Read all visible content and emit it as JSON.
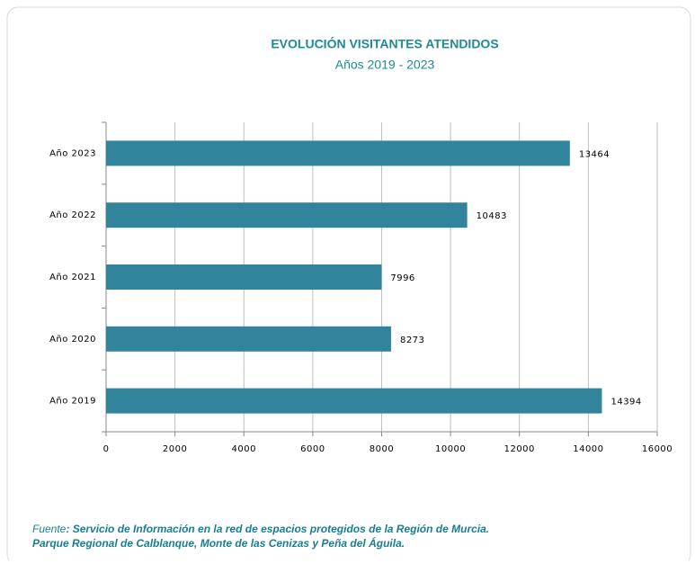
{
  "chart_data": {
    "type": "hbar",
    "title": "EVOLUCIÓN VISITANTES ATENDIDOS",
    "subtitle": "Años 2019 - 2023",
    "categories": [
      "Año 2023",
      "Año 2022",
      "Año 2021",
      "Año 2020",
      "Año 2019"
    ],
    "values": [
      13464,
      10483,
      7996,
      8273,
      14394
    ],
    "color": "#31849b",
    "xlim": [
      0,
      16000
    ],
    "xticks": [
      0,
      2000,
      4000,
      6000,
      8000,
      10000,
      12000,
      14000,
      16000
    ],
    "grid": true,
    "source": {
      "label": "Fuente",
      "lines": [
        ": Servicio de Información en la red de espacios protegidos de la Región de Murcia.",
        "Parque Regional de Calblanque, Monte de las Cenizas y Peña del Águila."
      ]
    }
  }
}
